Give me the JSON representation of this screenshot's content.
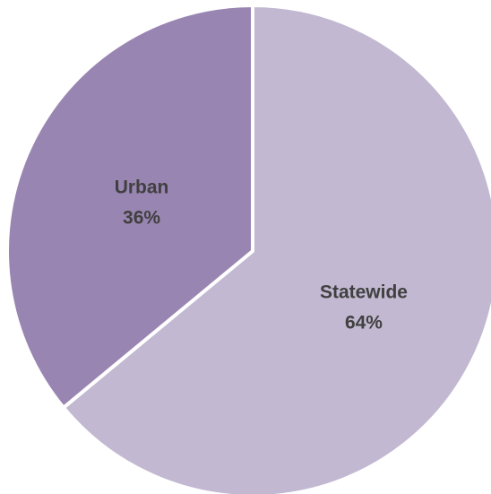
{
  "chart_data": {
    "type": "pie",
    "title": "",
    "slices": [
      {
        "label": "Statewide",
        "value": 64,
        "value_label": "64%",
        "color": "#c2b8d1"
      },
      {
        "label": "Urban",
        "value": 36,
        "value_label": "36%",
        "color": "#9985b1"
      }
    ],
    "start": "12 o'clock",
    "direction": "clockwise",
    "slice_separator_color": "#ffffff",
    "legend": "none",
    "data_labels": "inside"
  }
}
